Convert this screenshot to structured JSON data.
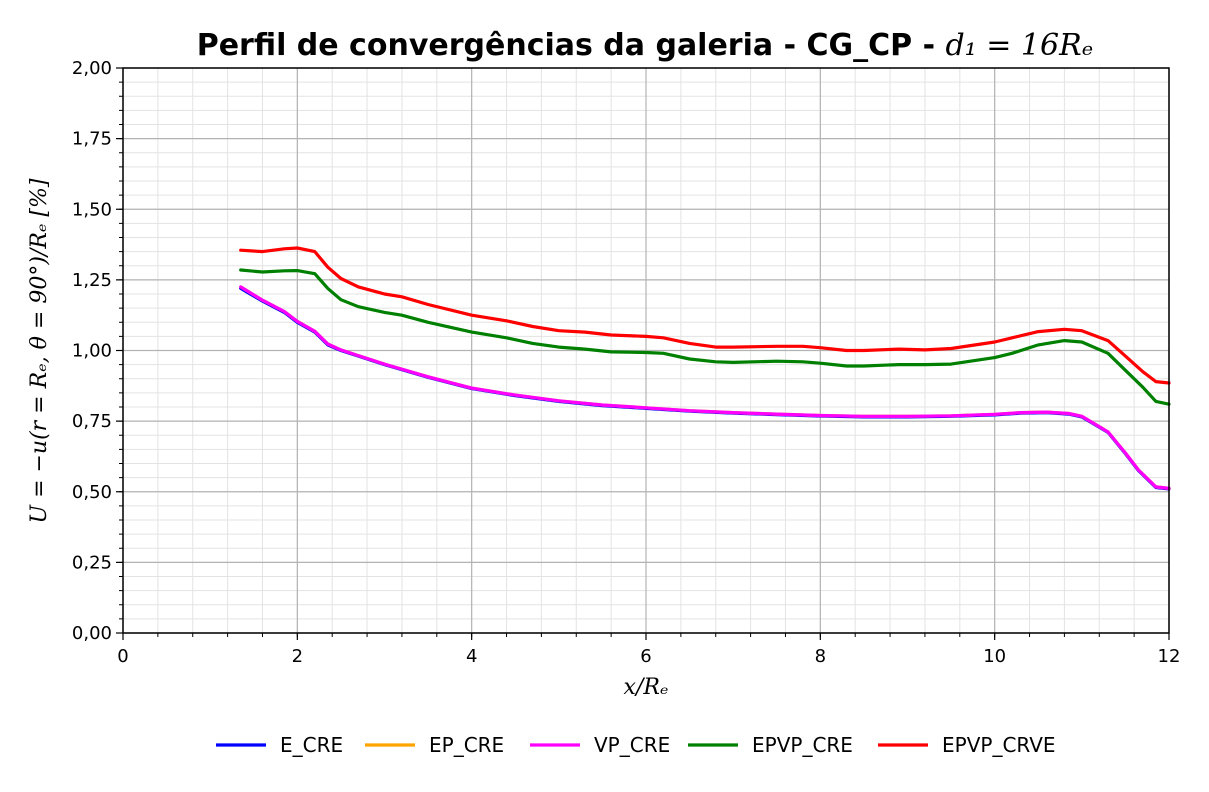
{
  "chart_data": {
    "type": "line",
    "title": "Perfil de convergências da galeria - CG_CP - ",
    "title_math": "d₁ = 16Rₑ",
    "xlabel": "x/Rₑ",
    "ylabel": "U = −u(r = Rₑ, θ = 90°)/Rₑ [%]",
    "xlim": [
      0,
      12
    ],
    "ylim": [
      0,
      2
    ],
    "x_ticks": [
      0,
      2,
      4,
      6,
      8,
      10,
      12
    ],
    "x_tick_labels": [
      "0",
      "2",
      "4",
      "6",
      "8",
      "10",
      "12"
    ],
    "y_ticks": [
      0,
      0.25,
      0.5,
      0.75,
      1.0,
      1.25,
      1.5,
      1.75,
      2.0
    ],
    "y_tick_labels": [
      "0,00",
      "0,25",
      "0,50",
      "0,75",
      "1,00",
      "1,25",
      "1,50",
      "1,75",
      "2,00"
    ],
    "grid": true,
    "legend_position": "bottom",
    "series": [
      {
        "name": "E_CRE",
        "color": "#0000ff",
        "x": [
          1.35,
          1.6,
          1.85,
          2.0,
          2.2,
          2.35,
          2.5,
          2.7,
          3.0,
          3.5,
          4.0,
          4.5,
          5.0,
          5.5,
          6.0,
          6.5,
          7.0,
          7.5,
          8.0,
          8.5,
          9.0,
          9.5,
          10.0,
          10.3,
          10.6,
          10.85,
          11.0,
          11.3,
          11.5,
          11.65,
          11.85,
          12.0
        ],
        "y": [
          1.22,
          1.175,
          1.135,
          1.1,
          1.065,
          1.02,
          1.0,
          0.98,
          0.95,
          0.905,
          0.865,
          0.84,
          0.82,
          0.805,
          0.795,
          0.785,
          0.778,
          0.773,
          0.768,
          0.765,
          0.765,
          0.767,
          0.772,
          0.778,
          0.78,
          0.775,
          0.765,
          0.71,
          0.635,
          0.575,
          0.515,
          0.51
        ]
      },
      {
        "name": "EP_CRE",
        "color": "#ffa500",
        "x": [
          1.35,
          1.6,
          1.85,
          2.0,
          2.2,
          2.35,
          2.5,
          2.7,
          3.0,
          3.5,
          4.0,
          4.5,
          5.0,
          5.5,
          6.0,
          6.5,
          7.0,
          7.5,
          8.0,
          8.5,
          9.0,
          9.5,
          10.0,
          10.3,
          10.6,
          10.85,
          11.0,
          11.3,
          11.5,
          11.65,
          11.85,
          12.0
        ],
        "y": [
          1.225,
          1.178,
          1.138,
          1.103,
          1.068,
          1.023,
          1.002,
          0.982,
          0.952,
          0.907,
          0.867,
          0.842,
          0.822,
          0.807,
          0.797,
          0.787,
          0.78,
          0.775,
          0.77,
          0.767,
          0.767,
          0.769,
          0.774,
          0.78,
          0.782,
          0.777,
          0.767,
          0.712,
          0.637,
          0.577,
          0.517,
          0.512
        ]
      },
      {
        "name": "VP_CRE",
        "color": "#ff00ff",
        "x": [
          1.35,
          1.6,
          1.85,
          2.0,
          2.2,
          2.35,
          2.5,
          2.7,
          3.0,
          3.5,
          4.0,
          4.5,
          5.0,
          5.5,
          6.0,
          6.5,
          7.0,
          7.5,
          8.0,
          8.5,
          9.0,
          9.5,
          10.0,
          10.3,
          10.6,
          10.85,
          11.0,
          11.3,
          11.5,
          11.65,
          11.85,
          12.0
        ],
        "y": [
          1.225,
          1.178,
          1.138,
          1.103,
          1.068,
          1.023,
          1.002,
          0.982,
          0.952,
          0.907,
          0.867,
          0.842,
          0.822,
          0.807,
          0.797,
          0.787,
          0.78,
          0.775,
          0.77,
          0.767,
          0.767,
          0.769,
          0.774,
          0.78,
          0.782,
          0.777,
          0.767,
          0.712,
          0.637,
          0.577,
          0.517,
          0.512
        ]
      },
      {
        "name": "EPVP_CRE",
        "color": "#008000",
        "x": [
          1.35,
          1.6,
          1.85,
          2.0,
          2.2,
          2.35,
          2.5,
          2.7,
          3.0,
          3.2,
          3.5,
          4.0,
          4.4,
          4.7,
          5.0,
          5.3,
          5.6,
          6.0,
          6.2,
          6.5,
          6.8,
          7.0,
          7.5,
          7.8,
          8.0,
          8.3,
          8.5,
          8.9,
          9.2,
          9.5,
          10.0,
          10.2,
          10.5,
          10.8,
          11.0,
          11.3,
          11.5,
          11.7,
          11.85,
          12.0
        ],
        "y": [
          1.285,
          1.278,
          1.282,
          1.283,
          1.272,
          1.22,
          1.18,
          1.155,
          1.135,
          1.125,
          1.1,
          1.065,
          1.045,
          1.025,
          1.012,
          1.005,
          0.995,
          0.993,
          0.99,
          0.97,
          0.96,
          0.958,
          0.962,
          0.96,
          0.955,
          0.945,
          0.945,
          0.95,
          0.95,
          0.952,
          0.975,
          0.99,
          1.02,
          1.035,
          1.03,
          0.99,
          0.93,
          0.87,
          0.82,
          0.81
        ]
      },
      {
        "name": "EPVP_CRVE",
        "color": "#ff0000",
        "x": [
          1.35,
          1.6,
          1.85,
          2.0,
          2.2,
          2.35,
          2.5,
          2.7,
          3.0,
          3.2,
          3.5,
          4.0,
          4.4,
          4.7,
          5.0,
          5.3,
          5.6,
          6.0,
          6.2,
          6.5,
          6.8,
          7.0,
          7.5,
          7.8,
          8.0,
          8.3,
          8.5,
          8.9,
          9.2,
          9.5,
          10.0,
          10.2,
          10.5,
          10.8,
          11.0,
          11.3,
          11.5,
          11.7,
          11.85,
          12.0
        ],
        "y": [
          1.355,
          1.35,
          1.36,
          1.363,
          1.35,
          1.295,
          1.255,
          1.225,
          1.2,
          1.19,
          1.163,
          1.125,
          1.105,
          1.085,
          1.07,
          1.065,
          1.055,
          1.05,
          1.045,
          1.025,
          1.012,
          1.012,
          1.015,
          1.015,
          1.01,
          1.0,
          1.0,
          1.005,
          1.002,
          1.007,
          1.03,
          1.045,
          1.067,
          1.075,
          1.07,
          1.035,
          0.98,
          0.925,
          0.89,
          0.885
        ]
      }
    ]
  }
}
